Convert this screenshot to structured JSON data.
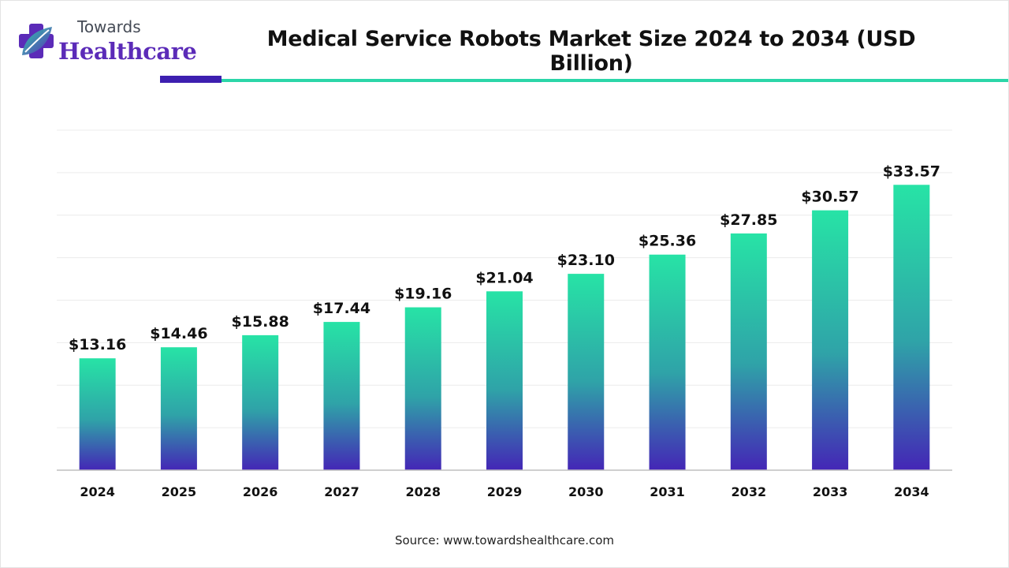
{
  "brand": {
    "top": "Towards",
    "bottom": "Healthcare",
    "icon": "medical-cross-leaf-icon",
    "colors": {
      "purple": "#5b2bb8",
      "teal": "#2bd6a8"
    }
  },
  "chart_data": {
    "type": "bar",
    "title": "Medical Service Robots Market Size 2024 to 2034 (USD Billion)",
    "xlabel": "",
    "ylabel": "",
    "categories": [
      "2024",
      "2025",
      "2026",
      "2027",
      "2028",
      "2029",
      "2030",
      "2031",
      "2032",
      "2033",
      "2034"
    ],
    "values": [
      13.16,
      14.46,
      15.88,
      17.44,
      19.16,
      21.04,
      23.1,
      25.36,
      27.85,
      30.57,
      33.57
    ],
    "data_labels": [
      "$13.16",
      "$14.46",
      "$15.88",
      "$17.44",
      "$19.16",
      "$21.04",
      "$23.10",
      "$25.36",
      "$27.85",
      "$30.57",
      "$33.57"
    ],
    "ylim": [
      0,
      40
    ],
    "grid": true,
    "legend": "none",
    "bar_gradient": {
      "top": "#27e3a6",
      "bottom": "#4426b6"
    }
  },
  "source": "Source: www.towardshealthcare.com"
}
